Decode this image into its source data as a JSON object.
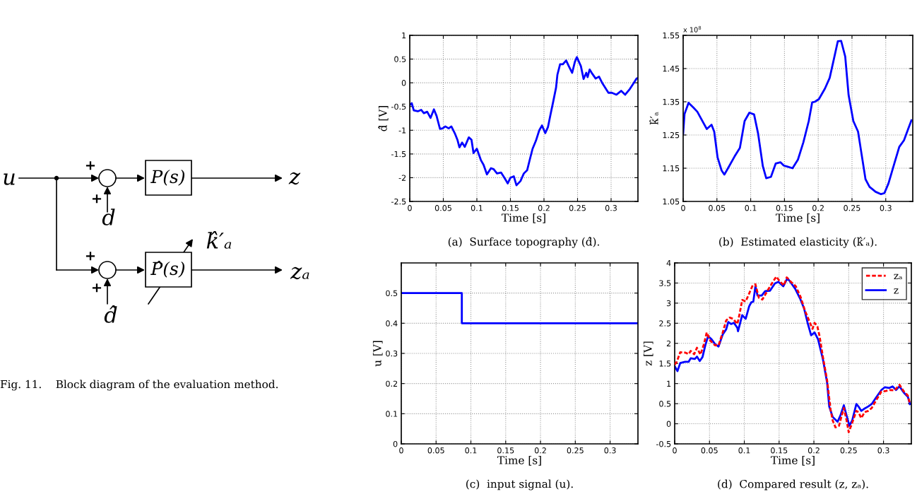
{
  "chart_data": [
    {
      "type": "other",
      "annotations": [
        "u",
        "+",
        "+",
        "P(s)",
        "z",
        "d",
        "+",
        "+",
        "P̂(s)",
        "k̂′ₐ",
        "zₐ",
        "d̂",
        "Fig. 11.    Block diagram of the evaluation method."
      ]
    },
    {
      "type": "line",
      "title": "(a)  Surface topography (d̂).",
      "xlabel": "Time [s]",
      "ylabel": "d̂ [V]",
      "xlim": [
        0,
        0.34
      ],
      "ylim": [
        -2.5,
        1
      ],
      "xticks": [
        0,
        0.05,
        0.1,
        0.15,
        0.2,
        0.25,
        0.3
      ],
      "yticks": [
        -2.5,
        -2,
        -1.5,
        -1,
        -0.5,
        0,
        0.5,
        1
      ],
      "grid": true,
      "series": [
        {
          "color": "#0000ff",
          "line_style": "solid",
          "x": [
            0,
            0.003,
            0.006,
            0.012,
            0.017,
            0.021,
            0.026,
            0.031,
            0.036,
            0.04,
            0.045,
            0.049,
            0.053,
            0.058,
            0.062,
            0.067,
            0.071,
            0.074,
            0.078,
            0.082,
            0.088,
            0.092,
            0.095,
            0.1,
            0.106,
            0.11,
            0.115,
            0.121,
            0.125,
            0.13,
            0.136,
            0.141,
            0.146,
            0.15,
            0.155,
            0.159,
            0.165,
            0.17,
            0.175,
            0.179,
            0.183,
            0.188,
            0.193,
            0.197,
            0.202,
            0.206,
            0.21,
            0.214,
            0.218,
            0.22,
            0.224,
            0.228,
            0.233,
            0.237,
            0.242,
            0.246,
            0.249,
            0.255,
            0.259,
            0.263,
            0.265,
            0.268,
            0.272,
            0.277,
            0.282,
            0.287,
            0.296,
            0.301,
            0.308,
            0.315,
            0.321,
            0.328,
            0.333,
            0.338,
            0.34
          ],
          "values": [
            -0.47,
            -0.43,
            -0.58,
            -0.6,
            -0.57,
            -0.64,
            -0.61,
            -0.74,
            -0.56,
            -0.7,
            -0.97,
            -0.96,
            -0.92,
            -0.96,
            -0.92,
            -1.06,
            -1.2,
            -1.36,
            -1.26,
            -1.35,
            -1.15,
            -1.2,
            -1.48,
            -1.39,
            -1.63,
            -1.73,
            -1.93,
            -1.8,
            -1.82,
            -1.91,
            -1.89,
            -2.0,
            -2.12,
            -2.0,
            -1.97,
            -2.16,
            -2.07,
            -1.91,
            -1.84,
            -1.61,
            -1.39,
            -1.22,
            -1.0,
            -0.9,
            -1.06,
            -0.93,
            -0.65,
            -0.38,
            -0.1,
            0.17,
            0.39,
            0.39,
            0.47,
            0.35,
            0.21,
            0.44,
            0.54,
            0.35,
            0.08,
            0.21,
            0.12,
            0.28,
            0.19,
            0.09,
            0.13,
            -0.01,
            -0.21,
            -0.21,
            -0.25,
            -0.17,
            -0.25,
            -0.13,
            -0.02,
            0.09,
            0.1
          ]
        }
      ]
    },
    {
      "type": "line",
      "title": "(b)  Estimated elasticity (k̂′ₐ).",
      "xlabel": "Time [s]",
      "ylabel": "k̂′ₐ",
      "annotations": [
        "x 10$^{8}$"
      ],
      "xlim": [
        0,
        0.34
      ],
      "ylim": [
        1.05,
        1.55
      ],
      "xticks": [
        0,
        0.05,
        0.1,
        0.15,
        0.2,
        0.25,
        0.3
      ],
      "yticks": [
        1.05,
        1.15,
        1.25,
        1.35,
        1.45,
        1.55
      ],
      "grid": true,
      "series": [
        {
          "color": "#0000ff",
          "line_style": "solid",
          "x": [
            0,
            0.002,
            0.008,
            0.015,
            0.021,
            0.029,
            0.035,
            0.042,
            0.046,
            0.051,
            0.057,
            0.061,
            0.067,
            0.076,
            0.084,
            0.091,
            0.098,
            0.105,
            0.111,
            0.118,
            0.123,
            0.13,
            0.137,
            0.144,
            0.149,
            0.154,
            0.162,
            0.17,
            0.178,
            0.186,
            0.191,
            0.195,
            0.201,
            0.21,
            0.217,
            0.224,
            0.229,
            0.234,
            0.24,
            0.245,
            0.252,
            0.259,
            0.264,
            0.27,
            0.276,
            0.285,
            0.293,
            0.298,
            0.304,
            0.313,
            0.32,
            0.327,
            0.333,
            0.338
          ],
          "values": [
            1.254,
            1.313,
            1.347,
            1.333,
            1.32,
            1.29,
            1.268,
            1.281,
            1.26,
            1.182,
            1.143,
            1.131,
            1.152,
            1.185,
            1.211,
            1.292,
            1.317,
            1.312,
            1.254,
            1.156,
            1.12,
            1.124,
            1.164,
            1.168,
            1.158,
            1.155,
            1.15,
            1.176,
            1.228,
            1.292,
            1.348,
            1.35,
            1.358,
            1.39,
            1.422,
            1.486,
            1.532,
            1.533,
            1.486,
            1.37,
            1.292,
            1.26,
            1.195,
            1.117,
            1.094,
            1.079,
            1.072,
            1.075,
            1.104,
            1.166,
            1.214,
            1.234,
            1.267,
            1.294
          ]
        }
      ]
    },
    {
      "type": "step",
      "title": "(c)  input signal (u).",
      "xlabel": "Time [s]",
      "ylabel": "u [V]",
      "xlim": [
        0,
        0.34
      ],
      "ylim": [
        0,
        0.6
      ],
      "xticks": [
        0,
        0.05,
        0.1,
        0.15,
        0.2,
        0.25,
        0.3
      ],
      "yticks": [
        0,
        0.1,
        0.2,
        0.3,
        0.4,
        0.5
      ],
      "grid": true,
      "series": [
        {
          "color": "#0000ff",
          "line_style": "solid",
          "x": [
            0,
            0.087,
            0.34
          ],
          "values": [
            0.5,
            0.4,
            0.4
          ]
        }
      ]
    },
    {
      "type": "line",
      "title": "(d)  Compared result (z, zₐ).",
      "xlabel": "Time [s]",
      "ylabel": "z [V]",
      "xlim": [
        0,
        0.34
      ],
      "ylim": [
        -0.5,
        4
      ],
      "xticks": [
        0,
        0.05,
        0.1,
        0.15,
        0.2,
        0.25,
        0.3
      ],
      "yticks": [
        -0.5,
        0,
        0.5,
        1,
        1.5,
        2,
        2.5,
        3,
        3.5,
        4
      ],
      "grid": true,
      "legend": "top right",
      "series": [
        {
          "name": "zₐ",
          "color": "#ff0000",
          "line_style": "dashed",
          "x": [
            0,
            0.003,
            0.008,
            0.015,
            0.02,
            0.023,
            0.028,
            0.032,
            0.037,
            0.042,
            0.046,
            0.051,
            0.058,
            0.063,
            0.069,
            0.074,
            0.079,
            0.084,
            0.09,
            0.093,
            0.097,
            0.102,
            0.107,
            0.112,
            0.116,
            0.121,
            0.126,
            0.133,
            0.14,
            0.146,
            0.151,
            0.157,
            0.161,
            0.167,
            0.174,
            0.181,
            0.187,
            0.193,
            0.198,
            0.201,
            0.205,
            0.208,
            0.213,
            0.219,
            0.224,
            0.227,
            0.231,
            0.236,
            0.243,
            0.247,
            0.25,
            0.255,
            0.261,
            0.264,
            0.268,
            0.273,
            0.278,
            0.283,
            0.29,
            0.297,
            0.302,
            0.309,
            0.316,
            0.323,
            0.329,
            0.335,
            0.338
          ],
          "values": [
            1.47,
            1.54,
            1.78,
            1.77,
            1.73,
            1.81,
            1.73,
            1.89,
            1.72,
            1.98,
            2.27,
            2.07,
            1.95,
            1.95,
            2.27,
            2.57,
            2.64,
            2.61,
            2.48,
            2.71,
            3.08,
            3.04,
            3.24,
            3.44,
            3.47,
            3.13,
            3.09,
            3.3,
            3.5,
            3.66,
            3.54,
            3.44,
            3.64,
            3.53,
            3.42,
            3.15,
            2.82,
            2.57,
            2.36,
            2.51,
            2.42,
            2.19,
            1.66,
            1.08,
            0.35,
            0.08,
            -0.09,
            -0.05,
            0.39,
            0.08,
            -0.21,
            0.02,
            0.32,
            0.29,
            0.14,
            0.29,
            0.32,
            0.39,
            0.6,
            0.8,
            0.81,
            0.84,
            0.83,
            0.97,
            0.81,
            0.7,
            0.49
          ]
        },
        {
          "name": "z",
          "color": "#0000ff",
          "line_style": "solid",
          "x": [
            0,
            0.004,
            0.008,
            0.015,
            0.02,
            0.023,
            0.029,
            0.032,
            0.036,
            0.04,
            0.044,
            0.048,
            0.053,
            0.058,
            0.063,
            0.069,
            0.074,
            0.077,
            0.081,
            0.085,
            0.09,
            0.091,
            0.097,
            0.102,
            0.107,
            0.11,
            0.113,
            0.116,
            0.119,
            0.125,
            0.13,
            0.137,
            0.144,
            0.149,
            0.156,
            0.162,
            0.166,
            0.173,
            0.18,
            0.186,
            0.191,
            0.196,
            0.201,
            0.206,
            0.213,
            0.219,
            0.222,
            0.227,
            0.234,
            0.238,
            0.243,
            0.247,
            0.251,
            0.255,
            0.261,
            0.264,
            0.268,
            0.272,
            0.278,
            0.283,
            0.29,
            0.297,
            0.302,
            0.308,
            0.313,
            0.318,
            0.323,
            0.329,
            0.335,
            0.338
          ],
          "values": [
            1.43,
            1.31,
            1.51,
            1.54,
            1.54,
            1.63,
            1.61,
            1.67,
            1.56,
            1.66,
            1.95,
            2.18,
            2.1,
            1.98,
            1.92,
            2.22,
            2.35,
            2.53,
            2.48,
            2.51,
            2.39,
            2.3,
            2.7,
            2.61,
            2.92,
            3.02,
            3.04,
            3.42,
            3.19,
            3.19,
            3.3,
            3.31,
            3.49,
            3.53,
            3.42,
            3.62,
            3.53,
            3.36,
            3.12,
            2.86,
            2.51,
            2.2,
            2.27,
            2.1,
            1.6,
            1.02,
            0.43,
            0.17,
            0.05,
            0.2,
            0.46,
            0.2,
            -0.05,
            0.08,
            0.49,
            0.43,
            0.32,
            0.37,
            0.43,
            0.49,
            0.67,
            0.84,
            0.91,
            0.89,
            0.93,
            0.84,
            0.93,
            0.78,
            0.67,
            0.49
          ]
        }
      ]
    }
  ]
}
